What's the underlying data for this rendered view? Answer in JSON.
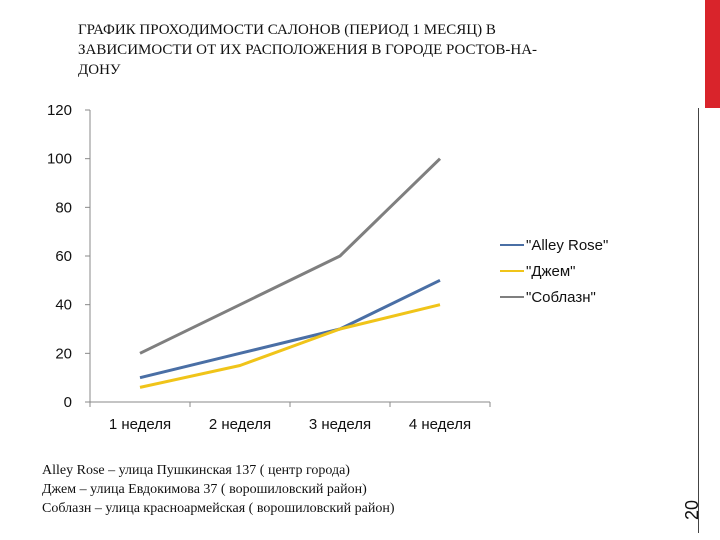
{
  "slide": {
    "title": "ГРАФИК ПРОХОДИМОСТИ САЛОНОВ (ПЕРИОД 1 МЕСЯЦ) В ЗАВИСИМОСТИ ОТ ИХ РАСПОЛОЖЕНИЯ В ГОРОДЕ РОСТОВ-НА-ДОНУ",
    "page_number": "20",
    "accent_color": "#d9242b",
    "notes": [
      "Alley Rose – улица Пушкинская 137 ( центр города)",
      "Джем – улица Евдокимова 37 ( ворошиловский район)",
      "Соблазн – улица красноармейская ( ворошиловский район)"
    ]
  },
  "chart_data": {
    "type": "line",
    "title": "",
    "xlabel": "",
    "ylabel": "",
    "categories": [
      "1 неделя",
      "2 неделя",
      "3 неделя",
      "4 неделя"
    ],
    "ylim": [
      0,
      120
    ],
    "yticks": [
      "0",
      "20",
      "40",
      "60",
      "80",
      "100",
      "120"
    ],
    "grid": false,
    "legend_position": "right",
    "series": [
      {
        "name": "\"Alley Rose\"",
        "values": [
          10,
          20,
          30,
          50
        ],
        "color": "#4a6fa5"
      },
      {
        "name": "\"Джем\"",
        "values": [
          6,
          15,
          30,
          40
        ],
        "color": "#f0c419"
      },
      {
        "name": "\"Соблазн\"",
        "values": [
          20,
          40,
          60,
          100
        ],
        "color": "#7f7f7f"
      }
    ]
  }
}
